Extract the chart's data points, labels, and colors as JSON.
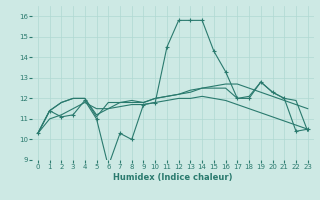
{
  "title": "",
  "xlabel": "Humidex (Indice chaleur)",
  "ylabel": "",
  "background_color": "#cde9e4",
  "grid_color": "#b0d8d2",
  "line_color": "#2a7a6e",
  "xlim": [
    -0.5,
    23.5
  ],
  "ylim": [
    9,
    16.5
  ],
  "yticks": [
    9,
    10,
    11,
    12,
    13,
    14,
    15,
    16
  ],
  "xticks": [
    0,
    1,
    2,
    3,
    4,
    5,
    6,
    7,
    8,
    9,
    10,
    11,
    12,
    13,
    14,
    15,
    16,
    17,
    18,
    19,
    20,
    21,
    22,
    23
  ],
  "lines": [
    {
      "x": [
        0,
        1,
        2,
        3,
        4,
        5,
        6,
        7,
        8,
        9,
        10,
        11,
        12,
        13,
        14,
        15,
        16,
        17,
        18,
        19,
        20,
        21,
        22,
        23
      ],
      "y": [
        10.3,
        11.4,
        11.1,
        11.2,
        11.9,
        11.0,
        8.7,
        10.3,
        10.0,
        11.7,
        11.8,
        14.5,
        15.8,
        15.8,
        15.8,
        14.3,
        13.3,
        12.0,
        12.0,
        12.8,
        12.3,
        12.0,
        10.4,
        10.5
      ],
      "marker": "+"
    },
    {
      "x": [
        0,
        1,
        2,
        3,
        4,
        5,
        6,
        7,
        8,
        9,
        10,
        11,
        12,
        13,
        14,
        15,
        16,
        17,
        18,
        19,
        20,
        21,
        22,
        23
      ],
      "y": [
        10.3,
        11.4,
        11.8,
        12.0,
        12.0,
        11.2,
        11.5,
        11.8,
        11.8,
        11.8,
        12.0,
        12.1,
        12.2,
        12.4,
        12.5,
        12.6,
        12.7,
        12.7,
        12.5,
        12.3,
        12.1,
        11.9,
        11.7,
        11.5
      ],
      "marker": null
    },
    {
      "x": [
        0,
        1,
        2,
        3,
        4,
        5,
        6,
        7,
        8,
        9,
        10,
        11,
        12,
        13,
        14,
        15,
        16,
        17,
        18,
        19,
        20,
        21,
        22,
        23
      ],
      "y": [
        10.3,
        11.0,
        11.2,
        11.5,
        11.8,
        11.5,
        11.5,
        11.6,
        11.7,
        11.7,
        11.8,
        11.9,
        12.0,
        12.0,
        12.1,
        12.0,
        11.9,
        11.7,
        11.5,
        11.3,
        11.1,
        10.9,
        10.7,
        10.5
      ],
      "marker": null
    },
    {
      "x": [
        0,
        1,
        2,
        3,
        4,
        5,
        6,
        7,
        8,
        9,
        10,
        11,
        12,
        13,
        14,
        15,
        16,
        17,
        18,
        19,
        20,
        21,
        22,
        23
      ],
      "y": [
        10.3,
        11.4,
        11.8,
        12.0,
        12.0,
        11.1,
        11.8,
        11.8,
        11.9,
        11.8,
        12.0,
        12.1,
        12.2,
        12.3,
        12.5,
        12.5,
        12.5,
        12.0,
        12.1,
        12.8,
        12.3,
        12.0,
        11.9,
        10.4
      ],
      "marker": null
    }
  ]
}
